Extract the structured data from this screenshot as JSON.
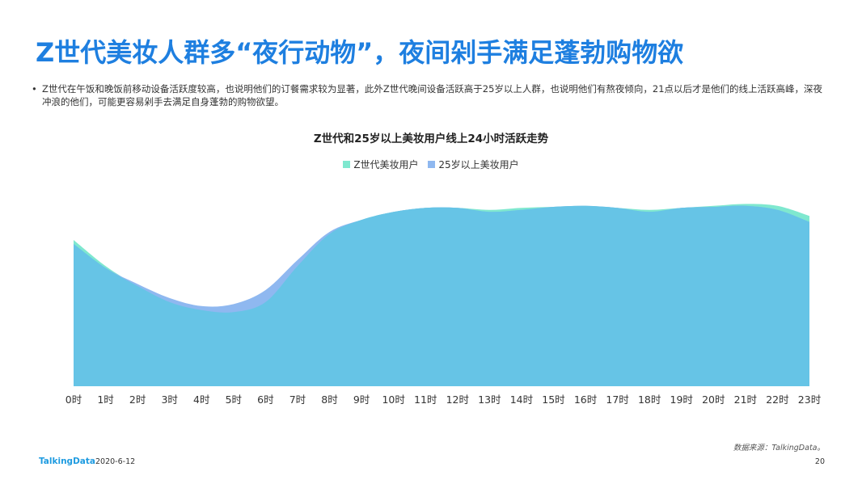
{
  "header": {
    "title": "Z世代美妆人群多“夜行动物”，夜间剁手满足蓬勃购物欲"
  },
  "body": {
    "bullet_text": "Z世代在午饭和晚饭前移动设备活跃度较高，也说明他们的订餐需求较为显著，此外Z世代晚间设备活跃高于25岁以上人群，也说明他们有熬夜倾向，21点以后才是他们的线上活跃高峰，深夜冲浪的他们，可能更容易剁手去满足自身蓬勃的购物欲望。"
  },
  "chart_data": {
    "type": "area",
    "title": "Z世代和25岁以上美妆用户线上24小时活跃走势",
    "categories": [
      "0时",
      "1时",
      "2时",
      "3时",
      "4时",
      "5时",
      "6时",
      "7时",
      "8时",
      "9时",
      "10时",
      "11时",
      "12时",
      "13时",
      "14时",
      "15时",
      "16时",
      "17时",
      "18时",
      "19时",
      "20时",
      "21时",
      "22时",
      "23时"
    ],
    "series": [
      {
        "name": "Z世代美妆用户",
        "color": "#7fe8cf",
        "values": [
          73,
          60,
          50,
          42,
          38,
          37,
          42,
          60,
          76,
          83,
          87,
          89,
          89,
          88,
          89,
          89.5,
          90,
          89,
          88,
          89,
          90,
          91,
          90,
          85
        ]
      },
      {
        "name": "25岁以上美妆用户",
        "color": "#8fb8f0",
        "values": [
          71,
          59,
          51,
          44,
          40,
          41,
          48,
          63,
          77,
          83,
          87,
          89,
          89,
          87,
          88,
          89.5,
          90,
          89,
          87,
          89,
          89.5,
          90,
          88,
          82
        ]
      }
    ],
    "overlap_color": "#66c4e6",
    "ylim": [
      0,
      100
    ],
    "legend_position": "top-center",
    "grid": false
  },
  "footer": {
    "source": "数据来源：TalkingData。",
    "logo_text": "TalkingData",
    "date": "2020-6-12",
    "page_number": "20"
  }
}
